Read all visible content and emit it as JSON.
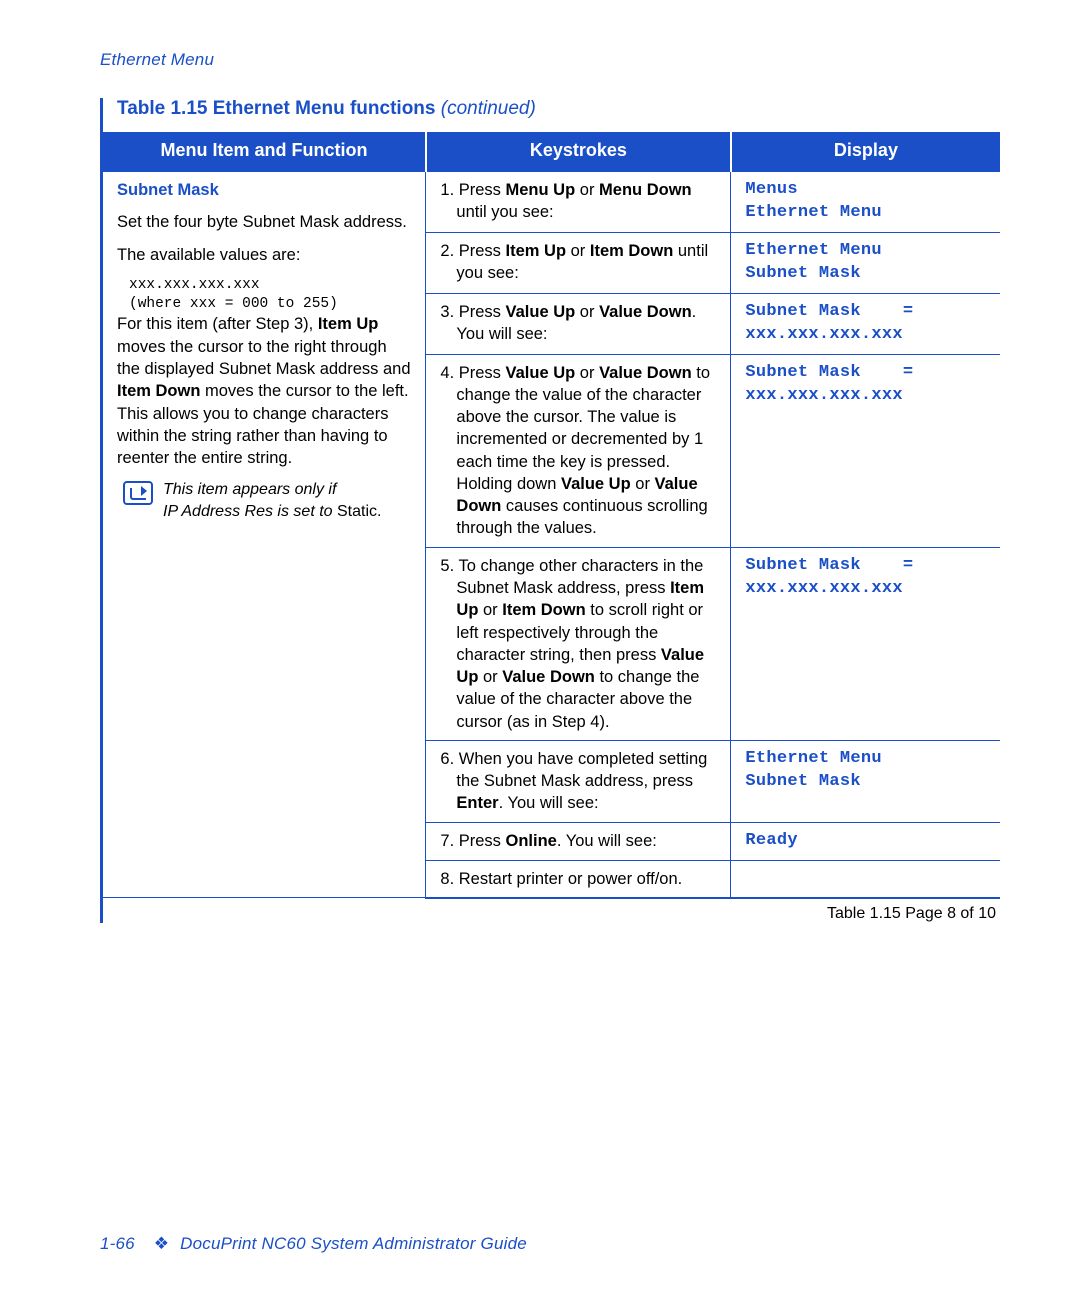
{
  "colors": {
    "brand_blue": "#1a4fc7",
    "header_bg": "#1a4fc7",
    "header_text": "#ffffff",
    "page_bg": "#ffffff",
    "body_text": "#000000",
    "rule": "#1a4fc7"
  },
  "typography": {
    "body_family": "Frutiger / Segoe UI / Arial",
    "body_size_pt": 12,
    "mono_family": "Courier New",
    "title_size_pt": 14
  },
  "section_header": "Ethernet Menu",
  "table": {
    "title_main": "Table 1.15  Ethernet Menu functions ",
    "title_suffix": "(continued)",
    "column_widths_pct": [
      36,
      34,
      30
    ],
    "headers": [
      "Menu Item and Function",
      "Keystrokes",
      "Display"
    ],
    "menu_item": {
      "title": "Subnet Mask",
      "desc1": "Set the four byte Subnet Mask address.",
      "desc2": "The available values are:",
      "mono_line1": "xxx.xxx.xxx.xxx",
      "mono_line2": "(where xxx = 000 to 255)",
      "desc3_pre": "For this item (after Step 3), ",
      "desc3_b1": "Item Up",
      "desc3_mid1": " moves the cursor to the right through the displayed Subnet Mask address and ",
      "desc3_b2": "Item Down",
      "desc3_mid2": " moves the cursor to the left. This allows you to change characters within the string rather than having to reenter the entire string.",
      "note_line1": "This item appears only if",
      "note_line2_pre": "IP Address Res is set to ",
      "note_line2_roman": "Static."
    },
    "rows": [
      {
        "ks": "1. Press <b>Menu Up</b> or <b>Menu Down</b> until you see:",
        "disp": "Menus\nEthernet Menu"
      },
      {
        "ks": "2. Press <b>Item Up</b> or <b>Item Down</b> until you see:",
        "disp": "Ethernet Menu\nSubnet Mask"
      },
      {
        "ks": "3. Press <b>Value Up</b> or <b>Value Down</b>. You will see:",
        "disp": "Subnet Mask    =\nxxx.xxx.xxx.xxx"
      },
      {
        "ks": "4. Press <b>Value Up</b> or <b>Value Down</b> to change the value of the character above the cursor. The value is incremented or decremented by 1 each time the key is pressed. Holding down <b>Value Up</b> or <b>Value Down</b> causes continuous scrolling through the values.",
        "disp": "Subnet Mask    =\nxxx.xxx.xxx.xxx"
      },
      {
        "ks": "5. To change other characters in the Subnet Mask address, press <b>Item Up</b> or <b>Item Down</b> to scroll right or left respectively through the character string, then press <b>Value Up</b> or <b>Value Down</b> to change the value of the character above the cursor (as in Step 4).",
        "disp": "Subnet Mask    =\nxxx.xxx.xxx.xxx"
      },
      {
        "ks": "6. When you have completed setting the Subnet Mask address, press <b>Enter</b>. You will see:",
        "disp": "Ethernet Menu\nSubnet Mask"
      },
      {
        "ks": "7. Press <b>Online</b>. You will see:",
        "disp": "Ready"
      },
      {
        "ks": "8. Restart printer or power off/on.",
        "disp": ""
      }
    ],
    "footnote": "Table 1.15  Page 8 of 10"
  },
  "footer": {
    "page_num": "1-66",
    "diamond": "❖",
    "book": "DocuPrint NC60 System Administrator Guide"
  }
}
